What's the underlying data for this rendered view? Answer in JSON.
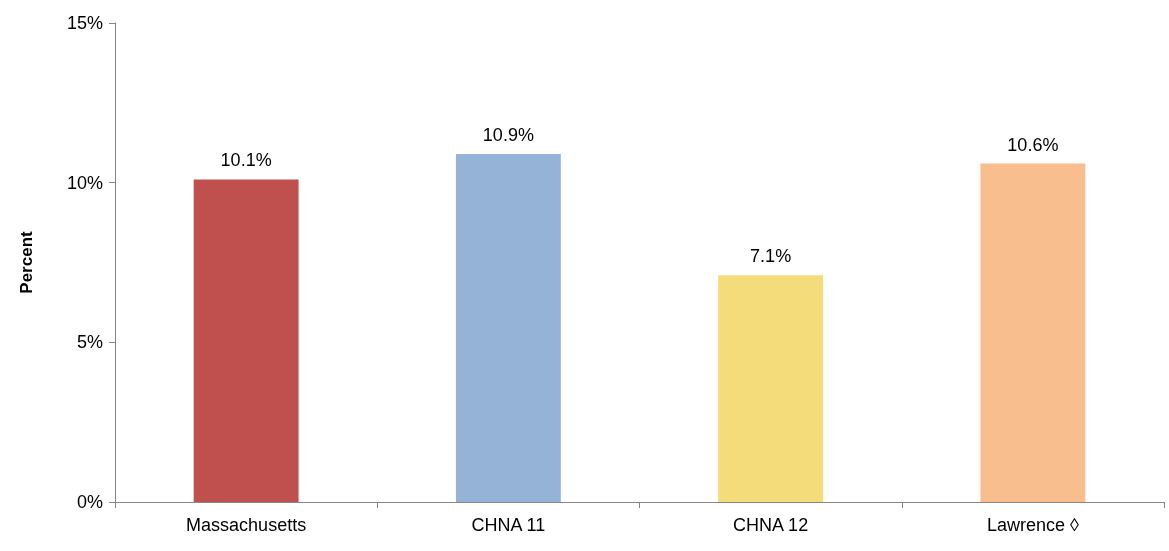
{
  "chart_data": {
    "type": "bar",
    "ylabel": "Percent",
    "categories": [
      "Massachusetts",
      "CHNA 11",
      "CHNA 12",
      "Lawrence ◊"
    ],
    "values": [
      10.1,
      10.9,
      7.1,
      10.6
    ],
    "colors": [
      "#c0504d",
      "#95b3d7",
      "#f4dc7a",
      "#f9be8e"
    ],
    "value_labels": [
      "10.1%",
      "10.9%",
      "7.1%",
      "10.6%"
    ],
    "ylim": [
      0,
      15
    ],
    "yticks": [
      {
        "value": 0,
        "label": "0%"
      },
      {
        "value": 5,
        "label": "5%"
      },
      {
        "value": 10,
        "label": "10%"
      },
      {
        "value": 15,
        "label": "15%"
      }
    ],
    "grid": false
  }
}
